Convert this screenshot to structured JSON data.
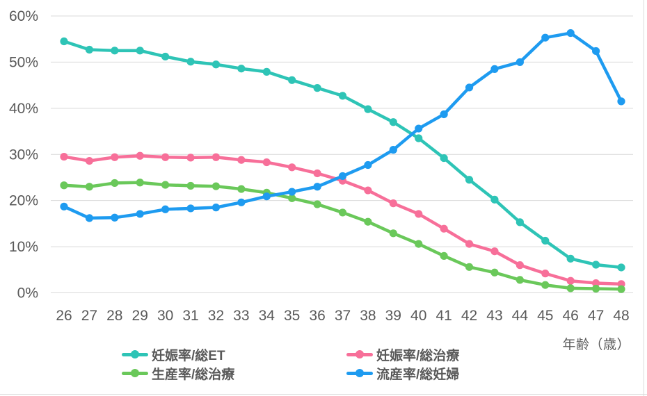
{
  "chart_data": {
    "type": "line",
    "title": "",
    "xlabel": "年齢（歳）",
    "ylabel": "",
    "x": [
      26,
      27,
      28,
      29,
      30,
      31,
      32,
      33,
      34,
      35,
      36,
      37,
      38,
      39,
      40,
      41,
      42,
      43,
      44,
      45,
      46,
      47,
      48
    ],
    "y_axis": {
      "min": 0,
      "max": 60,
      "step": 10,
      "format": "percent"
    },
    "y_tick_labels": [
      "0%",
      "10%",
      "20%",
      "30%",
      "40%",
      "50%",
      "60%"
    ],
    "grid": true,
    "legend_position": "bottom",
    "series": [
      {
        "name": "妊娠率/総ET",
        "color": "#2EC4B6",
        "values": [
          54.5,
          52.7,
          52.5,
          52.5,
          51.2,
          50.1,
          49.5,
          48.6,
          47.9,
          46.1,
          44.4,
          42.7,
          39.8,
          37.0,
          33.5,
          29.2,
          24.5,
          20.2,
          15.3,
          11.3,
          7.4,
          6.1,
          5.5
        ]
      },
      {
        "name": "妊娠率/総治療",
        "color": "#F76F99",
        "values": [
          29.5,
          28.6,
          29.4,
          29.7,
          29.4,
          29.3,
          29.4,
          28.8,
          28.3,
          27.2,
          25.9,
          24.3,
          22.2,
          19.4,
          17.1,
          13.9,
          10.6,
          9.0,
          6.0,
          4.2,
          2.6,
          2.1,
          1.9
        ]
      },
      {
        "name": "生産率/総治療",
        "color": "#6AC85A",
        "values": [
          23.3,
          23.0,
          23.8,
          23.9,
          23.4,
          23.2,
          23.1,
          22.5,
          21.7,
          20.5,
          19.2,
          17.4,
          15.4,
          12.9,
          10.6,
          8.0,
          5.6,
          4.4,
          2.8,
          1.7,
          1.0,
          0.9,
          0.8
        ]
      },
      {
        "name": "流産率/総妊婦",
        "color": "#1E9BF0",
        "values": [
          18.7,
          16.2,
          16.3,
          17.1,
          18.1,
          18.3,
          18.5,
          19.6,
          20.9,
          21.9,
          23.0,
          25.3,
          27.7,
          31.0,
          35.6,
          38.7,
          44.5,
          48.5,
          50.0,
          55.3,
          56.3,
          52.4,
          41.5
        ]
      }
    ]
  },
  "colors": {
    "grid": "#D9D9D9",
    "axis_text": "#595959",
    "background": "#FFFFFF",
    "edge": "#DBDBDB"
  }
}
